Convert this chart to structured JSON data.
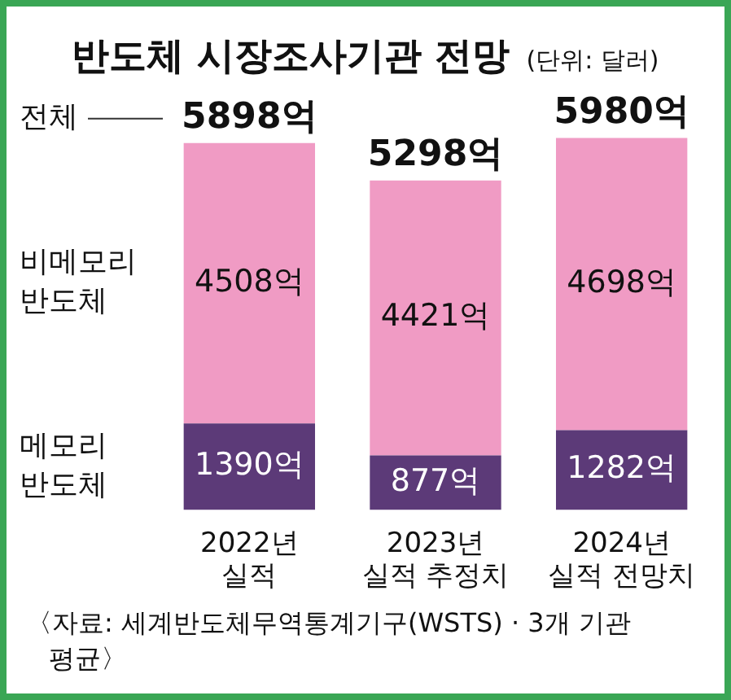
{
  "chart_data": {
    "type": "bar",
    "title": "반도체 시장조사기관 전망",
    "subtitle": "(단위: 달러)",
    "categories": [
      "2022년\n실적",
      "2023년\n실적 추정치",
      "2024년\n실적 전망치"
    ],
    "stacked": true,
    "series": [
      {
        "name": "메모리 반도체",
        "color": "#5c3a78",
        "values": [
          1390,
          877,
          1282
        ],
        "value_labels": [
          "1390억",
          "877억",
          "1282억"
        ]
      },
      {
        "name": "비메모리 반도체",
        "color": "#f09bc4",
        "values": [
          4508,
          4421,
          4698
        ],
        "value_labels": [
          "4508억",
          "4421억",
          "4698억"
        ]
      }
    ],
    "totals": [
      "5898억",
      "5298억",
      "5980억"
    ],
    "annotations": [
      "전체",
      "〈자료: 세계반도체무역통계기구(WSTS) · 3개 기관 평균〉"
    ],
    "tick_labels": "x",
    "grid": false,
    "legend": false
  }
}
